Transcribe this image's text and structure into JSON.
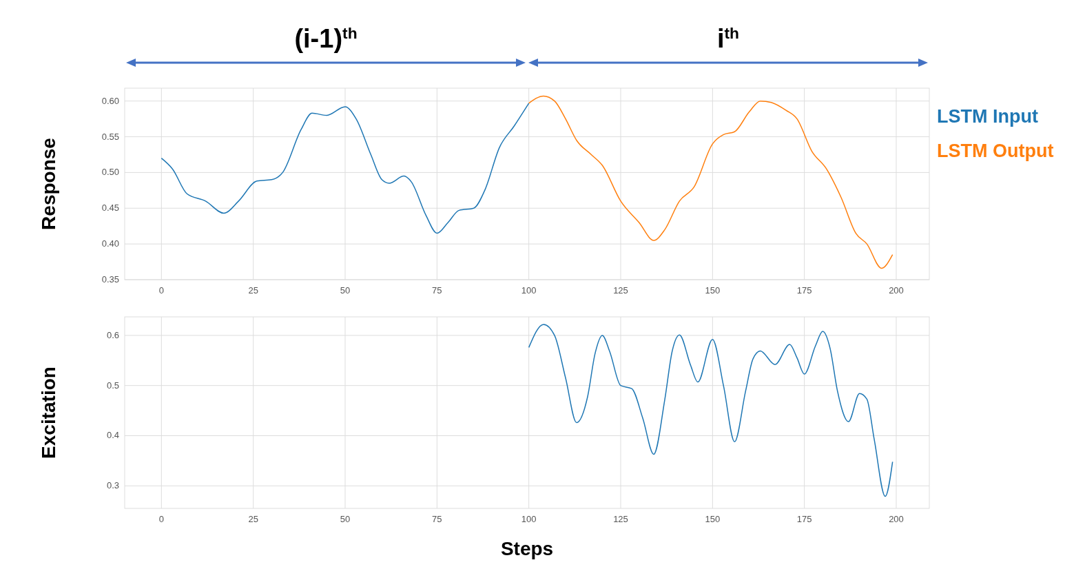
{
  "chart_data": [
    {
      "type": "line",
      "ylabel": "Response",
      "annotations": [
        "(i-1)$^{th}$",
        "i$^{th}$"
      ],
      "xlim": [
        -10,
        209
      ],
      "xticks": [
        0,
        25,
        50,
        75,
        100,
        125,
        150,
        175,
        200
      ],
      "ylim": [
        0.35,
        0.618
      ],
      "yticks": [
        0.35,
        {
          "value": 0.4,
          "label": "0.40"
        },
        0.45,
        {
          "value": 0.5,
          "label": "0.50"
        },
        0.55,
        {
          "value": 0.6,
          "label": "0.60"
        }
      ],
      "grid": true,
      "legend": "top right",
      "series": [
        {
          "name": "LSTM Input",
          "color": "#1f77b4",
          "x": [
            0,
            3,
            7,
            12,
            17,
            21,
            26,
            30,
            33,
            38,
            41,
            45,
            50,
            53,
            57,
            60,
            62,
            66,
            68,
            72,
            75,
            78,
            81,
            85,
            88,
            92,
            96,
            100
          ],
          "values": [
            0.52,
            0.505,
            0.47,
            0.46,
            0.443,
            0.46,
            0.488,
            0.49,
            0.5,
            0.56,
            0.583,
            0.58,
            0.592,
            0.575,
            0.525,
            0.49,
            0.485,
            0.495,
            0.487,
            0.44,
            0.415,
            0.43,
            0.447,
            0.45,
            0.475,
            0.535,
            0.565,
            0.597
          ]
        },
        {
          "name": "LSTM Output",
          "color": "#ff7f0e",
          "x": [
            100,
            104,
            107,
            110,
            113,
            117,
            120,
            125,
            130,
            134,
            137,
            141,
            145,
            150,
            153,
            156,
            160,
            163,
            166,
            170,
            173,
            177,
            181,
            185,
            189,
            192,
            196,
            199
          ],
          "values": [
            0.597,
            0.607,
            0.6,
            0.575,
            0.545,
            0.525,
            0.51,
            0.46,
            0.43,
            0.405,
            0.42,
            0.46,
            0.48,
            0.54,
            0.553,
            0.557,
            0.585,
            0.6,
            0.598,
            0.587,
            0.575,
            0.53,
            0.505,
            0.465,
            0.415,
            0.4,
            0.366,
            0.385
          ]
        }
      ]
    },
    {
      "type": "line",
      "xlabel": "Steps",
      "ylabel": "Excitation",
      "xlim": [
        -10,
        209
      ],
      "xticks": [
        0,
        25,
        50,
        75,
        100,
        125,
        150,
        175,
        200
      ],
      "ylim": [
        0.255,
        0.637
      ],
      "yticks": [
        0.3,
        0.4,
        0.5,
        0.6
      ],
      "grid": true,
      "series": [
        {
          "color": "#1f77b4",
          "x": [
            100,
            104,
            107,
            110,
            113,
            116,
            118,
            120,
            122,
            125,
            128,
            131,
            134,
            137,
            139,
            141,
            144,
            146,
            150,
            153,
            156,
            159,
            161,
            163,
            167,
            171,
            173,
            175,
            178,
            180,
            182,
            184,
            187,
            190,
            192,
            194,
            197,
            199
          ],
          "values": [
            0.576,
            0.622,
            0.6,
            0.515,
            0.426,
            0.478,
            0.563,
            0.6,
            0.568,
            0.5,
            0.494,
            0.435,
            0.363,
            0.472,
            0.568,
            0.601,
            0.541,
            0.507,
            0.592,
            0.499,
            0.388,
            0.489,
            0.553,
            0.569,
            0.542,
            0.582,
            0.555,
            0.523,
            0.579,
            0.608,
            0.574,
            0.489,
            0.428,
            0.484,
            0.473,
            0.393,
            0.279,
            0.348
          ]
        }
      ]
    }
  ]
}
